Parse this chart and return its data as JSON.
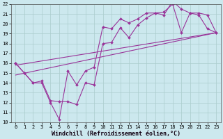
{
  "xlabel": "Windchill (Refroidissement éolien,°C)",
  "bg_color": "#cce8ee",
  "line_color": "#993399",
  "ylim": [
    10,
    22
  ],
  "xlim": [
    -0.5,
    23.5
  ],
  "yticks": [
    10,
    11,
    12,
    13,
    14,
    15,
    16,
    17,
    18,
    19,
    20,
    21,
    22
  ],
  "xticks": [
    0,
    1,
    2,
    3,
    4,
    5,
    6,
    7,
    8,
    9,
    10,
    11,
    12,
    13,
    14,
    15,
    16,
    17,
    18,
    19,
    20,
    21,
    22,
    23
  ],
  "line1_x": [
    0,
    1,
    2,
    3,
    4,
    5,
    6,
    7,
    8,
    9,
    10,
    11,
    12,
    13,
    14,
    15,
    16,
    17,
    18,
    19,
    20,
    21,
    22,
    23
  ],
  "line1_y": [
    16,
    15,
    14,
    14,
    12,
    10.3,
    15.2,
    13.8,
    15.2,
    15.6,
    19.7,
    19.5,
    20.5,
    20.1,
    20.5,
    21.1,
    21.1,
    20.9,
    22.3,
    21.5,
    21.1,
    20.9,
    19.5,
    19.1
  ],
  "line2_x": [
    0,
    1,
    2,
    3,
    4,
    5,
    6,
    7,
    8,
    9,
    10,
    11,
    12,
    13,
    14,
    15,
    16,
    17,
    18,
    19,
    20,
    21,
    22,
    23
  ],
  "line2_y": [
    16,
    15,
    14,
    14.2,
    12.2,
    12.1,
    12.1,
    11.8,
    14,
    13.8,
    18,
    18.1,
    19.6,
    18.6,
    19.9,
    20.6,
    21.1,
    21.2,
    22,
    19.1,
    21.1,
    21.1,
    20.9,
    19.1
  ],
  "line3_x": [
    0,
    23
  ],
  "line3_y": [
    15.8,
    19.1
  ],
  "line4_x": [
    0,
    23
  ],
  "line4_y": [
    14.8,
    19.1
  ],
  "grid_color": "#aacccc",
  "xlabel_fontsize": 6,
  "tick_fontsize": 5
}
